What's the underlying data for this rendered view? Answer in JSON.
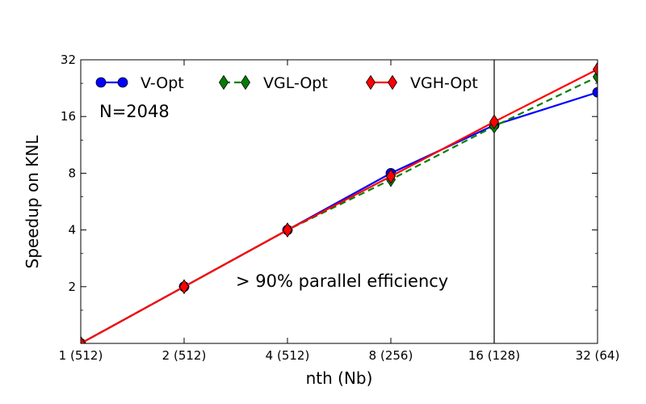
{
  "chart_data": {
    "type": "line",
    "title": "",
    "xlabel": "nth (Nb)",
    "ylabel": "Speedup on KNL",
    "x_scale": "log2",
    "y_scale": "log2",
    "x": [
      1,
      2,
      4,
      8,
      16,
      32
    ],
    "x_tick_labels": [
      "1 (512)",
      "2 (512)",
      "4 (512)",
      "8 (256)",
      "16 (128)",
      "32 (64)"
    ],
    "y_ticks": [
      2,
      4,
      8,
      16,
      32
    ],
    "y_tick_labels": [
      "2",
      "4",
      "8",
      "16",
      "32"
    ],
    "xlim": [
      1,
      32
    ],
    "ylim": [
      1,
      32
    ],
    "vertical_line_x": 16,
    "grid": false,
    "legend_position": "top",
    "series": [
      {
        "name": "V-Opt",
        "values": [
          1.0,
          2.0,
          4.0,
          8.0,
          14.4,
          21.5
        ],
        "color": "#0000ff",
        "marker": "circle",
        "linestyle": "solid"
      },
      {
        "name": "VGL-Opt",
        "values": [
          1.0,
          2.0,
          4.0,
          7.4,
          14.2,
          26.0
        ],
        "color": "#008000",
        "marker": "diamond",
        "linestyle": "dashed"
      },
      {
        "name": "VGH-Opt",
        "values": [
          1.0,
          2.0,
          4.0,
          7.7,
          15.0,
          28.5
        ],
        "color": "#ff0000",
        "marker": "diamond",
        "linestyle": "solid"
      }
    ],
    "annotations": [
      {
        "text": "N=2048"
      },
      {
        "text": "> 90% parallel efficiency"
      }
    ]
  }
}
